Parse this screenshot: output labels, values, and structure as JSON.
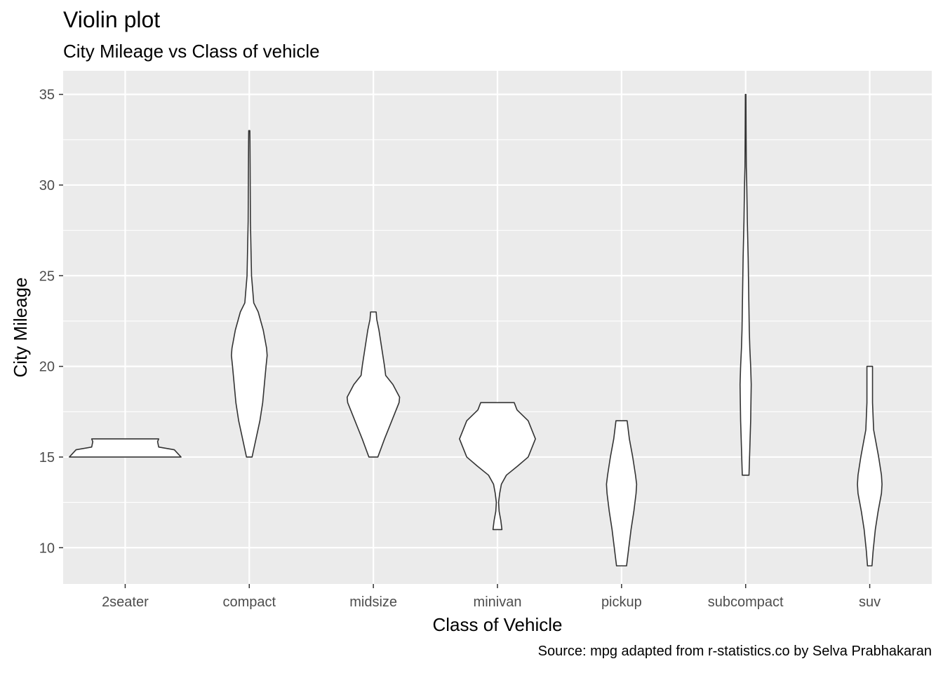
{
  "chart_data": {
    "type": "violin",
    "title": "Violin plot",
    "subtitle": "City Mileage vs Class of vehicle",
    "caption": "Source: mpg adapted from r-statistics.co by Selva Prabhakaran",
    "xlabel": "Class of Vehicle",
    "ylabel": "City Mileage",
    "ylim": [
      8,
      36.3
    ],
    "yticks": [
      10,
      15,
      20,
      25,
      30,
      35
    ],
    "grid": true,
    "panel_background": "#EBEBEB",
    "grid_color": "#FFFFFF",
    "violin_fill": "#FFFFFF",
    "violin_outline": "#333333",
    "categories": [
      "2seater",
      "compact",
      "midsize",
      "minivan",
      "pickup",
      "subcompact",
      "suv"
    ],
    "violins": [
      {
        "category": "2seater",
        "y_min": 15,
        "y_max": 16,
        "profile": [
          [
            15,
            1.0
          ],
          [
            15.4,
            0.88
          ],
          [
            15.55,
            0.6
          ],
          [
            15.85,
            0.58
          ],
          [
            16,
            0.6
          ]
        ]
      },
      {
        "category": "compact",
        "y_min": 15,
        "y_max": 33,
        "profile": [
          [
            15,
            0.05
          ],
          [
            16,
            0.12
          ],
          [
            17,
            0.19
          ],
          [
            18,
            0.24
          ],
          [
            19,
            0.27
          ],
          [
            20,
            0.3
          ],
          [
            20.6,
            0.32
          ],
          [
            21,
            0.31
          ],
          [
            22,
            0.25
          ],
          [
            23,
            0.16
          ],
          [
            23.5,
            0.08
          ],
          [
            25,
            0.04
          ],
          [
            28,
            0.02
          ],
          [
            31,
            0.015
          ],
          [
            32.5,
            0.012
          ],
          [
            33,
            0.01
          ]
        ]
      },
      {
        "category": "midsize",
        "y_min": 15,
        "y_max": 23,
        "profile": [
          [
            15,
            0.08
          ],
          [
            16,
            0.2
          ],
          [
            17,
            0.33
          ],
          [
            18,
            0.46
          ],
          [
            18.3,
            0.47
          ],
          [
            19,
            0.35
          ],
          [
            19.5,
            0.22
          ],
          [
            20,
            0.2
          ],
          [
            21,
            0.15
          ],
          [
            22,
            0.1
          ],
          [
            22.6,
            0.06
          ],
          [
            23,
            0.05
          ]
        ]
      },
      {
        "category": "minivan",
        "y_min": 11,
        "y_max": 18,
        "profile": [
          [
            11,
            0.08
          ],
          [
            11.5,
            0.06
          ],
          [
            12,
            0.03
          ],
          [
            12.5,
            0.02
          ],
          [
            13,
            0.04
          ],
          [
            13.5,
            0.07
          ],
          [
            14,
            0.16
          ],
          [
            14.5,
            0.36
          ],
          [
            15,
            0.55
          ],
          [
            16,
            0.68
          ],
          [
            17,
            0.55
          ],
          [
            17.6,
            0.35
          ],
          [
            18,
            0.3
          ]
        ]
      },
      {
        "category": "pickup",
        "y_min": 9,
        "y_max": 17,
        "profile": [
          [
            9,
            0.09
          ],
          [
            9.5,
            0.11
          ],
          [
            10,
            0.13
          ],
          [
            11,
            0.17
          ],
          [
            12,
            0.22
          ],
          [
            13,
            0.26
          ],
          [
            13.5,
            0.27
          ],
          [
            14,
            0.25
          ],
          [
            15,
            0.2
          ],
          [
            16,
            0.14
          ],
          [
            17,
            0.1
          ]
        ]
      },
      {
        "category": "subcompact",
        "y_min": 14,
        "y_max": 35,
        "profile": [
          [
            14,
            0.06
          ],
          [
            15,
            0.07
          ],
          [
            16,
            0.08
          ],
          [
            17,
            0.09
          ],
          [
            18,
            0.095
          ],
          [
            19,
            0.1
          ],
          [
            20,
            0.09
          ],
          [
            21,
            0.075
          ],
          [
            22,
            0.065
          ],
          [
            24,
            0.055
          ],
          [
            26,
            0.045
          ],
          [
            28,
            0.03
          ],
          [
            30,
            0.02
          ],
          [
            31,
            0.012
          ],
          [
            33,
            0.008
          ],
          [
            35,
            0.005
          ]
        ]
      },
      {
        "category": "suv",
        "y_min": 9,
        "y_max": 20,
        "profile": [
          [
            9,
            0.04
          ],
          [
            9.8,
            0.06
          ],
          [
            11,
            0.1
          ],
          [
            12,
            0.15
          ],
          [
            13,
            0.21
          ],
          [
            13.5,
            0.22
          ],
          [
            14,
            0.21
          ],
          [
            15,
            0.16
          ],
          [
            16,
            0.1
          ],
          [
            16.5,
            0.07
          ],
          [
            18,
            0.05
          ],
          [
            19,
            0.05
          ],
          [
            20,
            0.05
          ]
        ]
      }
    ]
  }
}
